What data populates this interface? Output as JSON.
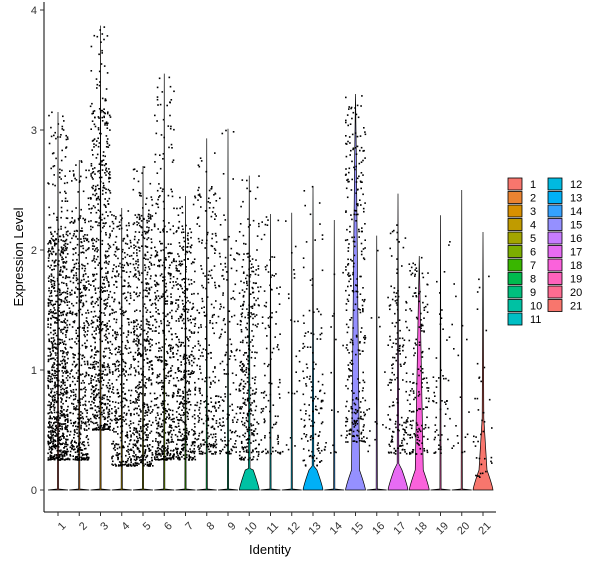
{
  "chart_data": {
    "type": "violin",
    "xlabel": "Identity",
    "ylabel": "Expression Level",
    "ylim": [
      -0.15,
      4.05
    ],
    "yticks": [
      0,
      1,
      2,
      3,
      4
    ],
    "grid": false,
    "legend_position": "right",
    "legend_columns": 2,
    "categories": [
      "1",
      "2",
      "3",
      "4",
      "5",
      "6",
      "7",
      "8",
      "9",
      "10",
      "11",
      "12",
      "13",
      "14",
      "15",
      "16",
      "17",
      "18",
      "19",
      "20",
      "21"
    ],
    "colors": [
      "#F8766D",
      "#EA8331",
      "#D89000",
      "#C09B00",
      "#A3A500",
      "#7CAE00",
      "#39B600",
      "#00BB4E",
      "#00BF7D",
      "#00C1A3",
      "#00BFC4",
      "#00BAE0",
      "#00B0F6",
      "#35A2FF",
      "#9590FF",
      "#C77CFF",
      "#E76BF3",
      "#FA62DB",
      "#FF62BC",
      "#FF6C91",
      "#F8766D"
    ],
    "max_value": [
      3.15,
      2.75,
      3.87,
      2.35,
      2.7,
      3.47,
      2.45,
      2.93,
      3.01,
      2.62,
      2.3,
      2.31,
      2.53,
      2.25,
      3.3,
      2.12,
      2.47,
      1.95,
      2.29,
      2.5,
      2.15
    ],
    "violin_peak_value": [
      0,
      0,
      0,
      0,
      0,
      0,
      0,
      0,
      0,
      0.18,
      0,
      0,
      0.2,
      0,
      2.8,
      0,
      0.22,
      1.6,
      0,
      0,
      0.6
    ],
    "point_band": [
      [
        0.25,
        2.2
      ],
      [
        0.25,
        2.3
      ],
      [
        0.5,
        3.2
      ],
      [
        0.2,
        2.3
      ],
      [
        0.2,
        2.3
      ],
      [
        0.25,
        2.2
      ],
      [
        0.25,
        2.2
      ],
      [
        0.3,
        2.6
      ],
      [
        0.3,
        2.0
      ],
      [
        0.25,
        2.0
      ],
      [
        0.3,
        2.0
      ],
      [
        0.3,
        2.3
      ],
      [
        0.2,
        1.5
      ],
      [
        0.3,
        1.5
      ],
      [
        0.4,
        3.2
      ],
      [
        0.3,
        1.0
      ],
      [
        0.3,
        1.7
      ],
      [
        0.3,
        1.9
      ],
      [
        0.3,
        1.0
      ],
      [
        0.3,
        1.9
      ],
      [
        0.1,
        1.0
      ]
    ],
    "point_count": [
      900,
      500,
      650,
      400,
      550,
      500,
      450,
      260,
      160,
      320,
      110,
      28,
      130,
      20,
      320,
      16,
      160,
      160,
      55,
      18,
      40
    ]
  }
}
